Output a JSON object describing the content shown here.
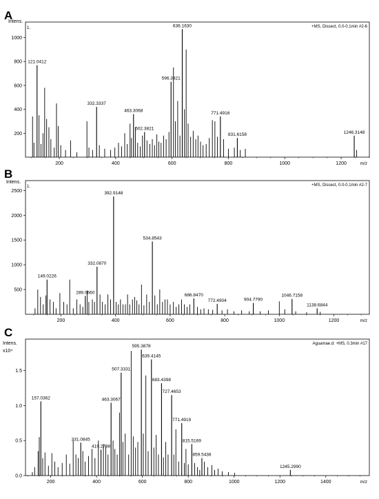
{
  "chart_data": [
    {
      "type": "mass-spectrum",
      "panel_label": "A",
      "ylabel": "Intens.",
      "y_multiplier": "",
      "xlabel": "m/z",
      "run_info": "+MS, Dissect, 0.0-0.1min #2-6",
      "trace_number": "1.",
      "xlim": [
        80,
        1300
      ],
      "ylim": [
        0,
        1130
      ],
      "x_ticks": [
        200,
        400,
        600,
        800,
        1000,
        1200
      ],
      "y_ticks": [
        200,
        400,
        600,
        800,
        1000
      ],
      "y_tick_labels": [
        "200",
        "400",
        "600",
        "800",
        "1000"
      ],
      "labeled_peaks": [
        {
          "label": "121.0412",
          "x": 121.0,
          "y": 770
        },
        {
          "label": "332.3337",
          "x": 332.3,
          "y": 420
        },
        {
          "label": "463.3068",
          "x": 463.3,
          "y": 360
        },
        {
          "label": "502.3821",
          "x": 502.4,
          "y": 210
        },
        {
          "label": "596.3921",
          "x": 596.4,
          "y": 630
        },
        {
          "label": "636.1630",
          "x": 636.2,
          "y": 1070
        },
        {
          "label": "771.4916",
          "x": 771.5,
          "y": 340
        },
        {
          "label": "831.6158",
          "x": 831.6,
          "y": 160
        },
        {
          "label": "1246.3148",
          "x": 1246.3,
          "y": 180
        }
      ],
      "peaks": [
        [
          105,
          340
        ],
        [
          110,
          120
        ],
        [
          128,
          350
        ],
        [
          135,
          110
        ],
        [
          142,
          200
        ],
        [
          148,
          580
        ],
        [
          155,
          320
        ],
        [
          163,
          250
        ],
        [
          170,
          150
        ],
        [
          182,
          80
        ],
        [
          190,
          450
        ],
        [
          196,
          260
        ],
        [
          205,
          100
        ],
        [
          222,
          60
        ],
        [
          240,
          140
        ],
        [
          262,
          40
        ],
        [
          298,
          300
        ],
        [
          305,
          80
        ],
        [
          318,
          60
        ],
        [
          342,
          100
        ],
        [
          361,
          70
        ],
        [
          382,
          60
        ],
        [
          397,
          80
        ],
        [
          410,
          120
        ],
        [
          421,
          90
        ],
        [
          432,
          200
        ],
        [
          441,
          110
        ],
        [
          451,
          280
        ],
        [
          456,
          160
        ],
        [
          470,
          250
        ],
        [
          478,
          120
        ],
        [
          487,
          90
        ],
        [
          495,
          180
        ],
        [
          511,
          140
        ],
        [
          521,
          110
        ],
        [
          530,
          150
        ],
        [
          538,
          100
        ],
        [
          546,
          190
        ],
        [
          553,
          130
        ],
        [
          561,
          120
        ],
        [
          570,
          180
        ],
        [
          579,
          150
        ],
        [
          589,
          210
        ],
        [
          605,
          750
        ],
        [
          612,
          300
        ],
        [
          620,
          470
        ],
        [
          628,
          180
        ],
        [
          644,
          400
        ],
        [
          650,
          900
        ],
        [
          657,
          280
        ],
        [
          666,
          170
        ],
        [
          675,
          220
        ],
        [
          684,
          150
        ],
        [
          692,
          180
        ],
        [
          701,
          130
        ],
        [
          710,
          100
        ],
        [
          721,
          110
        ],
        [
          732,
          160
        ],
        [
          743,
          310
        ],
        [
          752,
          300
        ],
        [
          761,
          170
        ],
        [
          783,
          150
        ],
        [
          800,
          70
        ],
        [
          821,
          80
        ],
        [
          842,
          60
        ],
        [
          860,
          70
        ],
        [
          1255,
          60
        ]
      ]
    },
    {
      "type": "mass-spectrum",
      "panel_label": "B",
      "ylabel": "Intens.",
      "y_multiplier": "",
      "xlabel": "m/z",
      "run_info": "+MS, Dissect, 0.0-0.1min #2-7",
      "trace_number": "1.",
      "xlim": [
        70,
        1330
      ],
      "ylim": [
        0,
        2700
      ],
      "x_ticks": [
        200,
        400,
        600,
        800,
        1000,
        1200
      ],
      "y_ticks": [
        500,
        1000,
        1500,
        2000,
        2500
      ],
      "y_tick_labels": [
        "500",
        "1000",
        "1500",
        "2000",
        "2500"
      ],
      "labeled_peaks": [
        {
          "label": "149.0226",
          "x": 149.0,
          "y": 700
        },
        {
          "label": "289.0660",
          "x": 289.1,
          "y": 370
        },
        {
          "label": "332.0870",
          "x": 332.1,
          "y": 960
        },
        {
          "label": "392.9148",
          "x": 392.9,
          "y": 2380
        },
        {
          "label": "534.8543",
          "x": 534.9,
          "y": 1470
        },
        {
          "label": "686.8470",
          "x": 686.8,
          "y": 320
        },
        {
          "label": "772.4904",
          "x": 772.5,
          "y": 210
        },
        {
          "label": "904.7790",
          "x": 904.8,
          "y": 230
        },
        {
          "label": "1046.7158",
          "x": 1046.7,
          "y": 310
        },
        {
          "label": "1138.6844",
          "x": 1138.7,
          "y": 120
        }
      ],
      "peaks": [
        [
          105,
          120
        ],
        [
          115,
          500
        ],
        [
          125,
          350
        ],
        [
          135,
          200
        ],
        [
          145,
          380
        ],
        [
          160,
          300
        ],
        [
          172,
          250
        ],
        [
          182,
          120
        ],
        [
          196,
          430
        ],
        [
          210,
          250
        ],
        [
          222,
          200
        ],
        [
          232,
          700
        ],
        [
          245,
          120
        ],
        [
          258,
          300
        ],
        [
          270,
          200
        ],
        [
          280,
          150
        ],
        [
          296,
          480
        ],
        [
          302,
          250
        ],
        [
          315,
          300
        ],
        [
          323,
          250
        ],
        [
          343,
          400
        ],
        [
          352,
          250
        ],
        [
          362,
          200
        ],
        [
          372,
          400
        ],
        [
          382,
          300
        ],
        [
          402,
          250
        ],
        [
          410,
          200
        ],
        [
          418,
          300
        ],
        [
          427,
          200
        ],
        [
          436,
          200
        ],
        [
          444,
          400
        ],
        [
          452,
          200
        ],
        [
          462,
          300
        ],
        [
          470,
          350
        ],
        [
          478,
          280
        ],
        [
          486,
          200
        ],
        [
          495,
          600
        ],
        [
          504,
          180
        ],
        [
          514,
          400
        ],
        [
          524,
          250
        ],
        [
          544,
          380
        ],
        [
          553,
          200
        ],
        [
          562,
          500
        ],
        [
          572,
          250
        ],
        [
          581,
          300
        ],
        [
          590,
          300
        ],
        [
          600,
          200
        ],
        [
          612,
          250
        ],
        [
          622,
          150
        ],
        [
          632,
          200
        ],
        [
          642,
          300
        ],
        [
          652,
          200
        ],
        [
          662,
          150
        ],
        [
          672,
          200
        ],
        [
          700,
          150
        ],
        [
          712,
          100
        ],
        [
          724,
          120
        ],
        [
          740,
          100
        ],
        [
          756,
          90
        ],
        [
          790,
          80
        ],
        [
          810,
          100
        ],
        [
          834,
          60
        ],
        [
          862,
          80
        ],
        [
          890,
          60
        ],
        [
          930,
          60
        ],
        [
          960,
          80
        ],
        [
          1000,
          260
        ],
        [
          1020,
          100
        ],
        [
          1060,
          60
        ],
        [
          1100,
          40
        ],
        [
          1150,
          50
        ]
      ]
    },
    {
      "type": "mass-spectrum",
      "panel_label": "C",
      "ylabel": "Intens.",
      "y_multiplier": "x10⁴",
      "xlabel": "m/z",
      "run_info": "Aguamae.d: +MS, 0.3min #17",
      "trace_number": "",
      "xlim": [
        90,
        1590
      ],
      "ylim": [
        0,
        1.95
      ],
      "x_ticks": [
        200,
        400,
        600,
        800,
        1000,
        1200,
        1400
      ],
      "y_ticks": [
        0,
        0.5,
        1.0,
        1.5
      ],
      "y_tick_labels": [
        "0.0",
        "0.5",
        "1.0",
        "1.5"
      ],
      "labeled_peaks": [
        {
          "label": "157.0362",
          "x": 157.0,
          "y": 1.06
        },
        {
          "label": "331.0845",
          "x": 331.1,
          "y": 0.47
        },
        {
          "label": "419.2798",
          "x": 419.3,
          "y": 0.37
        },
        {
          "label": "463.3067",
          "x": 463.3,
          "y": 1.04
        },
        {
          "label": "507.3331",
          "x": 507.3,
          "y": 1.47
        },
        {
          "label": "595.3878",
          "x": 595.4,
          "y": 1.8
        },
        {
          "label": "639.4145",
          "x": 639.4,
          "y": 1.66
        },
        {
          "label": "683.4398",
          "x": 683.4,
          "y": 1.32
        },
        {
          "label": "727.4653",
          "x": 727.5,
          "y": 1.15
        },
        {
          "label": "771.4919",
          "x": 771.5,
          "y": 0.75
        },
        {
          "label": "815.5169",
          "x": 815.5,
          "y": 0.45
        },
        {
          "label": "859.5438",
          "x": 859.5,
          "y": 0.25
        },
        {
          "label": "1245.2990",
          "x": 1245.3,
          "y": 0.08
        }
      ],
      "peaks": [
        [
          120,
          0.05
        ],
        [
          130,
          0.12
        ],
        [
          145,
          0.35
        ],
        [
          150,
          0.55
        ],
        [
          165,
          0.25
        ],
        [
          175,
          0.33
        ],
        [
          190,
          0.14
        ],
        [
          205,
          0.32
        ],
        [
          218,
          0.2
        ],
        [
          232,
          0.12
        ],
        [
          250,
          0.18
        ],
        [
          268,
          0.3
        ],
        [
          283,
          0.17
        ],
        [
          298,
          0.5
        ],
        [
          310,
          0.3
        ],
        [
          320,
          0.25
        ],
        [
          340,
          0.35
        ],
        [
          350,
          0.2
        ],
        [
          365,
          0.28
        ],
        [
          380,
          0.38
        ],
        [
          393,
          0.25
        ],
        [
          408,
          0.5
        ],
        [
          430,
          0.45
        ],
        [
          440,
          0.42
        ],
        [
          450,
          0.3
        ],
        [
          472,
          0.5
        ],
        [
          480,
          0.38
        ],
        [
          490,
          0.3
        ],
        [
          500,
          0.9
        ],
        [
          515,
          0.48
        ],
        [
          525,
          0.6
        ],
        [
          540,
          0.3
        ],
        [
          551,
          1.78
        ],
        [
          560,
          0.56
        ],
        [
          570,
          0.4
        ],
        [
          580,
          0.48
        ],
        [
          604,
          0.6
        ],
        [
          615,
          1.43
        ],
        [
          625,
          0.35
        ],
        [
          650,
          0.4
        ],
        [
          660,
          0.58
        ],
        [
          670,
          0.3
        ],
        [
          692,
          0.26
        ],
        [
          702,
          0.48
        ],
        [
          712,
          0.3
        ],
        [
          737,
          0.3
        ],
        [
          746,
          0.66
        ],
        [
          758,
          0.2
        ],
        [
          783,
          0.18
        ],
        [
          790,
          0.38
        ],
        [
          800,
          0.16
        ],
        [
          828,
          0.18
        ],
        [
          840,
          0.12
        ],
        [
          850,
          0.08
        ],
        [
          870,
          0.2
        ],
        [
          885,
          0.12
        ],
        [
          903,
          0.15
        ],
        [
          915,
          0.08
        ],
        [
          930,
          0.1
        ],
        [
          948,
          0.06
        ],
        [
          975,
          0.05
        ],
        [
          1002,
          0.04
        ]
      ]
    }
  ]
}
